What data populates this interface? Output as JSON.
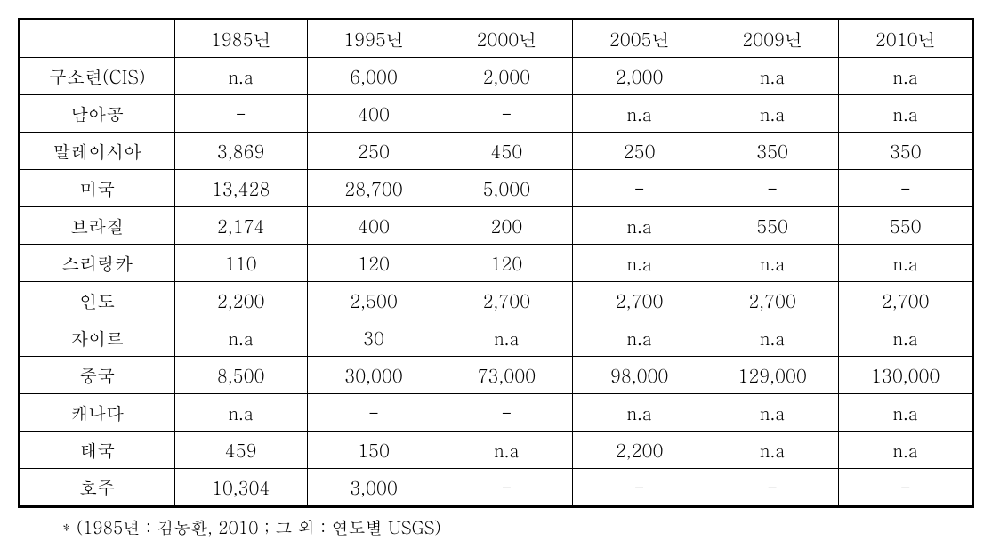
{
  "table": {
    "headers": [
      "",
      "1985년",
      "1995년",
      "2000년",
      "2005년",
      "2009년",
      "2010년"
    ],
    "rows": [
      {
        "label": "구소련(CIS)",
        "values": [
          "n.a",
          "6,000",
          "2,000",
          "2,000",
          "n.a",
          "n.a"
        ]
      },
      {
        "label": "남아공",
        "values": [
          "-",
          "400",
          "-",
          "n.a",
          "n.a",
          "n.a"
        ]
      },
      {
        "label": "말레이시아",
        "values": [
          "3,869",
          "250",
          "450",
          "250",
          "350",
          "350"
        ]
      },
      {
        "label": "미국",
        "values": [
          "13,428",
          "28,700",
          "5,000",
          "-",
          "-",
          "-"
        ]
      },
      {
        "label": "브라질",
        "values": [
          "2,174",
          "400",
          "200",
          "n.a",
          "550",
          "550"
        ]
      },
      {
        "label": "스리랑카",
        "values": [
          "110",
          "120",
          "120",
          "n.a",
          "n.a",
          "n.a"
        ]
      },
      {
        "label": "인도",
        "values": [
          "2,200",
          "2,500",
          "2,700",
          "2,700",
          "2,700",
          "2,700"
        ]
      },
      {
        "label": "자이르",
        "values": [
          "n.a",
          "30",
          "n.a",
          "n.a",
          "n.a",
          "n.a"
        ]
      },
      {
        "label": "중국",
        "values": [
          "8,500",
          "30,000",
          "73,000",
          "98,000",
          "129,000",
          "130,000"
        ]
      },
      {
        "label": "캐나다",
        "values": [
          "n.a",
          "-",
          "-",
          "n.a",
          "n.a",
          "n.a"
        ]
      },
      {
        "label": "태국",
        "values": [
          "459",
          "150",
          "n.a",
          "2,200",
          "n.a",
          "n.a"
        ]
      },
      {
        "label": "호주",
        "values": [
          "10,304",
          "3,000",
          "-",
          "-",
          "-",
          "-"
        ]
      }
    ],
    "column_widths": {
      "label": 175,
      "data": 150
    },
    "colors": {
      "border": "#000000",
      "background": "#ffffff",
      "text": "#000000"
    },
    "font_size": 20
  },
  "footnote": "* (1985년 : 김동환, 2010 ; 그 외 : 연도별 USGS)"
}
